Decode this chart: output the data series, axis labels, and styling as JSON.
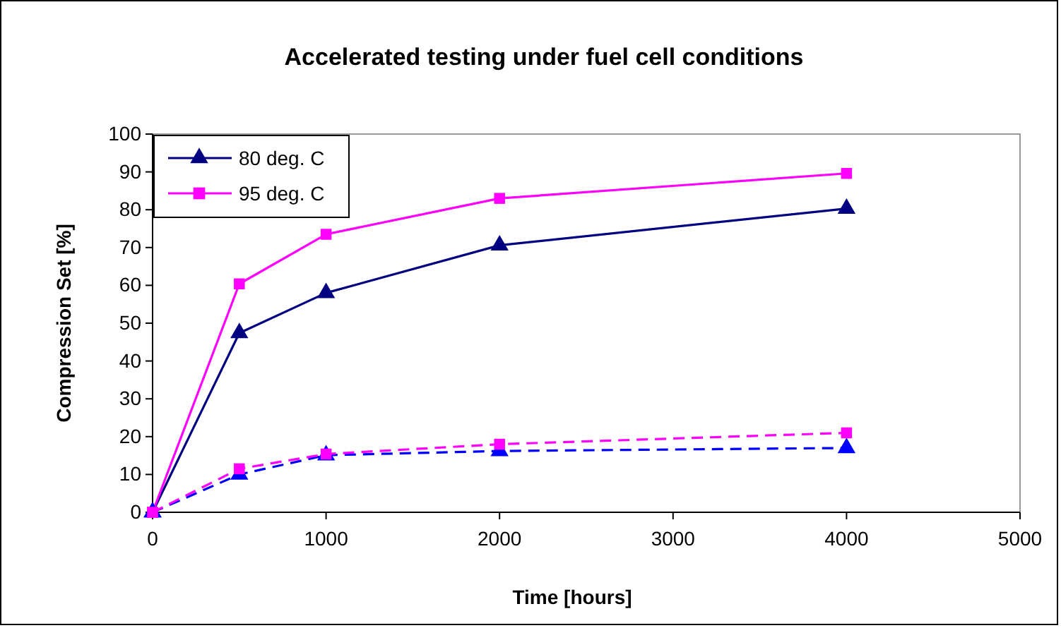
{
  "chart_data": {
    "type": "line",
    "title": "Accelerated testing under fuel cell conditions",
    "xlabel": "Time [hours]",
    "ylabel": "Compression Set  [%]",
    "x": [
      0,
      500,
      1000,
      2000,
      4000
    ],
    "xlim": [
      0,
      5000
    ],
    "xticks": [
      0,
      1000,
      2000,
      3000,
      4000,
      5000
    ],
    "ylim": [
      0,
      100
    ],
    "yticks": [
      0,
      10,
      20,
      30,
      40,
      50,
      60,
      70,
      80,
      90,
      100
    ],
    "grid": false,
    "legend": "top left",
    "series": [
      {
        "name": "80 deg. C",
        "color": "#000080",
        "marker": "triangle",
        "line_style": "solid",
        "values": [
          0,
          47.4,
          58,
          70.6,
          80.3
        ]
      },
      {
        "name": "95 deg. C",
        "color": "#ff00ff",
        "marker": "square",
        "line_style": "solid",
        "values": [
          0,
          60.4,
          73.5,
          83,
          89.6
        ]
      },
      {
        "color": "#0000ff",
        "marker": "triangle",
        "line_style": "dashed",
        "values": [
          0,
          10,
          15.1,
          16.2,
          17
        ]
      },
      {
        "color": "#ff00ff",
        "marker": "square",
        "line_style": "dashed",
        "values": [
          0,
          11.5,
          15.4,
          18,
          21
        ]
      }
    ]
  }
}
